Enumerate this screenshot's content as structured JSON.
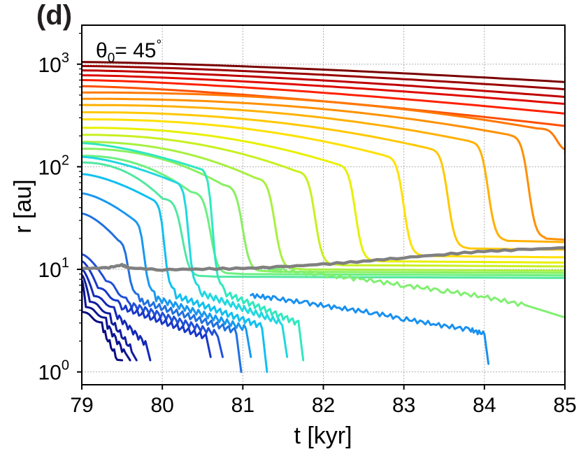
{
  "chart_data": {
    "type": "line",
    "panel_label": "(d)",
    "annotation": {
      "theta_symbol": "θ",
      "theta_sub": "0",
      "text": "= 45",
      "degree": "°"
    },
    "xlabel": "t  [kyr]",
    "ylabel": "r [au]",
    "xlim": [
      79,
      85
    ],
    "ylim": [
      0.75,
      2400
    ],
    "yscale": "log",
    "grid": true,
    "xticks": [
      79,
      80,
      81,
      82,
      83,
      84,
      85
    ],
    "yticks": [
      {
        "value": 1,
        "base": "10",
        "exp": "0"
      },
      {
        "value": 10,
        "base": "10",
        "exp": "1"
      },
      {
        "value": 100,
        "base": "10",
        "exp": "2"
      },
      {
        "value": 1000,
        "base": "10",
        "exp": "3"
      }
    ],
    "outer_series": [
      {
        "color": "#7a0000",
        "r0": 1050,
        "r_end": 670,
        "t_drop": null,
        "r_final": null
      },
      {
        "color": "#9a0000",
        "r0": 960,
        "r_end": 570,
        "t_drop": null,
        "r_final": null
      },
      {
        "color": "#c00000",
        "r0": 870,
        "r_end": 480,
        "t_drop": null,
        "r_final": null
      },
      {
        "color": "#e00a00",
        "r0": 780,
        "r_end": 410,
        "t_drop": null,
        "r_final": null
      },
      {
        "color": "#ff2000",
        "r0": 700,
        "r_end": 330,
        "t_drop": null,
        "r_final": null
      },
      {
        "color": "#ff5000",
        "r0": 610,
        "r_end": 250,
        "t_drop": null,
        "r_final": null
      },
      {
        "color": "#ff7800",
        "r0": 530,
        "r_end": 140,
        "t_drop": 84.95,
        "r_final": 140
      },
      {
        "color": "#ff9000",
        "r0": 460,
        "r_end": 20,
        "t_drop": 84.6,
        "r_final": 20
      },
      {
        "color": "#ffb000",
        "r0": 400,
        "r_end": 19,
        "t_drop": 84.1,
        "r_final": 19
      },
      {
        "color": "#ffc800",
        "r0": 340,
        "r_end": 16,
        "t_drop": 83.6,
        "r_final": 16
      },
      {
        "color": "#ffe000",
        "r0": 290,
        "r_end": 13.5,
        "t_drop": 83.05,
        "r_final": 13.5
      },
      {
        "color": "#e8f000",
        "r0": 240,
        "r_end": 12,
        "t_drop": 82.45,
        "r_final": 12
      },
      {
        "color": "#c8f020",
        "r0": 205,
        "r_end": 11,
        "t_drop": 81.95,
        "r_final": 11
      },
      {
        "color": "#a8f040",
        "r0": 175,
        "r_end": 10,
        "t_drop": 81.45,
        "r_final": 10
      },
      {
        "color": "#88f060",
        "r0": 150,
        "r_end": 9.5,
        "t_drop": 81.05,
        "r_final": 9.5
      },
      {
        "color": "#6cf080",
        "r0": 128,
        "r_end": 9,
        "t_drop": 80.65,
        "r_final": 9
      },
      {
        "color": "#50e8a0",
        "r0": 110,
        "r_end": 8.5,
        "t_drop": 80.3,
        "r_final": 8.5
      }
    ],
    "mid_series": [
      {
        "color": "#80f070",
        "points": [
          [
            81.3,
            10.2
          ],
          [
            81.5,
            9.8
          ],
          [
            82,
            8.8
          ],
          [
            82.5,
            8
          ],
          [
            83,
            7
          ],
          [
            83.5,
            6.2
          ],
          [
            84,
            5.4
          ],
          [
            84.5,
            4.5
          ],
          [
            85,
            3.4
          ]
        ]
      },
      {
        "color": "#1890f0",
        "points": [
          [
            81.1,
            5.6
          ],
          [
            81.4,
            5.2
          ],
          [
            81.8,
            4.7
          ],
          [
            82.2,
            4.2
          ],
          [
            82.6,
            3.8
          ],
          [
            83.0,
            3.3
          ],
          [
            83.4,
            2.9
          ],
          [
            83.8,
            2.6
          ],
          [
            84.0,
            2.35
          ],
          [
            84.05,
            1.2
          ]
        ]
      }
    ],
    "inner_series": [
      {
        "color": "#30e8c0",
        "r0": 170,
        "t_drop": 80.6,
        "r_after": 6.0,
        "t_end": 81.75,
        "r_end": 1.3
      },
      {
        "color": "#20d8e0",
        "r0": 125,
        "t_drop": 80.3,
        "r_after": 6.0,
        "t_end": 81.55,
        "r_end": 1.4
      },
      {
        "color": "#10c0f0",
        "r0": 85,
        "t_drop": 80.0,
        "r_after": 5.6,
        "t_end": 81.3,
        "r_end": 1.0
      },
      {
        "color": "#1898f0",
        "r0": 55,
        "t_drop": 79.75,
        "r_after": 5.3,
        "t_end": 81.1,
        "r_end": 1.4
      },
      {
        "color": "#2070e0",
        "r0": 35,
        "t_drop": 79.55,
        "r_after": 5.0,
        "t_end": 80.98,
        "r_end": 1.0
      },
      {
        "color": "#2050d8",
        "r0": 14,
        "t_drop": 79.4,
        "r_after": 4.7,
        "t_end": 80.75,
        "r_end": 1.4
      },
      {
        "color": "#1838c8",
        "r0": 12,
        "t_drop": 79.3,
        "r_after": 4.4,
        "t_end": 80.6,
        "r_end": 1.4
      },
      {
        "color": "#1428b8",
        "r0": 10,
        "t_drop": 79.25,
        "r_after": 3.8,
        "t_end": 79.85,
        "r_end": 1.3
      },
      {
        "color": "#101ca0",
        "r0": 8.8,
        "t_drop": 79.2,
        "r_after": 3.3,
        "t_end": 79.68,
        "r_end": 1.3
      },
      {
        "color": "#0c1490",
        "r0": 7.8,
        "t_drop": 79.15,
        "r_after": 3.0,
        "t_end": 79.6,
        "r_end": 1.3
      },
      {
        "color": "#0a0c80",
        "r0": 7.0,
        "t_drop": 79.1,
        "r_after": 2.7,
        "t_end": 79.5,
        "r_end": 1.3
      }
    ],
    "gray_series": {
      "color": "#808080",
      "points": [
        [
          79,
          10.2
        ],
        [
          79.3,
          10.3
        ],
        [
          79.5,
          11
        ],
        [
          79.6,
          10.3
        ],
        [
          80,
          9.9
        ],
        [
          80.5,
          10.1
        ],
        [
          81,
          10.2
        ],
        [
          81.5,
          10.6
        ],
        [
          82,
          11.2
        ],
        [
          82.5,
          12
        ],
        [
          83,
          13
        ],
        [
          83.5,
          14
        ],
        [
          84,
          15
        ],
        [
          84.5,
          15.6
        ],
        [
          85,
          16.2
        ]
      ]
    }
  }
}
